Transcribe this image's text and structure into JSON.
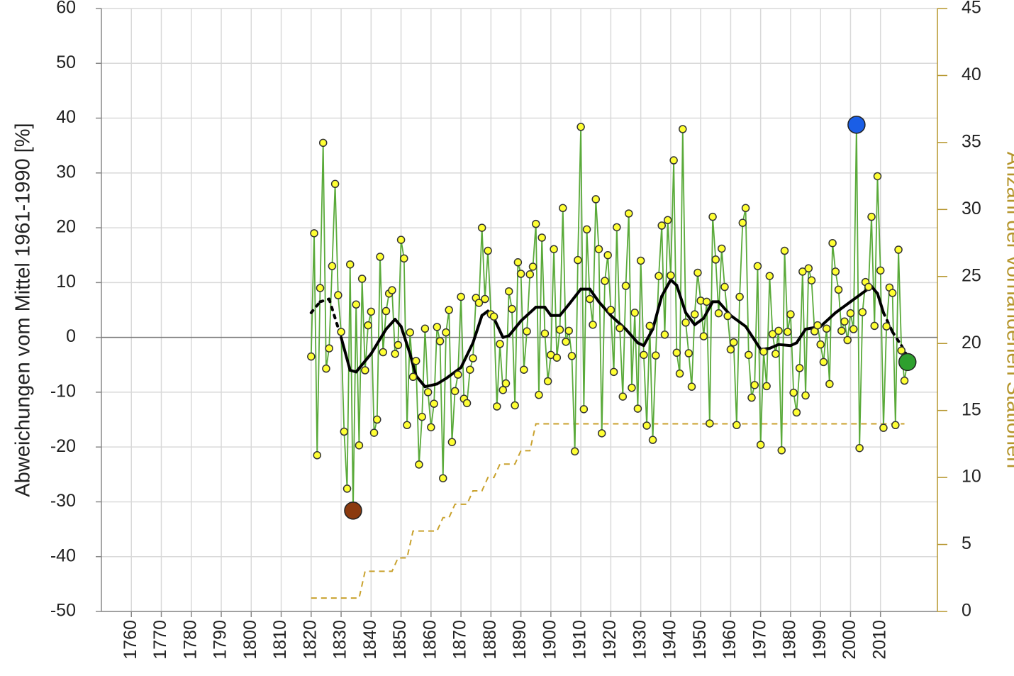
{
  "chart_data": {
    "type": "line",
    "y_label": "Abweichungen vom Mittel 1961-1990 [%]",
    "y2_label": "Anzahl der vorhandenen Stationen",
    "xlim": [
      1750,
      2029
    ],
    "xticks": [
      1760,
      1770,
      1780,
      1790,
      1800,
      1810,
      1820,
      1830,
      1840,
      1850,
      1860,
      1870,
      1880,
      1890,
      1900,
      1910,
      1920,
      1930,
      1940,
      1950,
      1960,
      1970,
      1980,
      1990,
      2000,
      2010
    ],
    "ylim": [
      -50,
      60
    ],
    "yticks": [
      -50,
      -40,
      -30,
      -20,
      -10,
      0,
      10,
      20,
      30,
      40,
      50,
      60
    ],
    "y2lim": [
      0,
      45
    ],
    "y2ticks": [
      0,
      5,
      10,
      15,
      20,
      25,
      30,
      35,
      40,
      45
    ],
    "y2_color": "#b5952c",
    "grid": true,
    "x": [
      1820,
      1821,
      1822,
      1823,
      1824,
      1825,
      1826,
      1827,
      1828,
      1829,
      1830,
      1831,
      1832,
      1833,
      1834,
      1835,
      1836,
      1837,
      1838,
      1839,
      1840,
      1841,
      1842,
      1843,
      1844,
      1845,
      1846,
      1847,
      1848,
      1849,
      1850,
      1851,
      1852,
      1853,
      1854,
      1855,
      1856,
      1857,
      1858,
      1859,
      1860,
      1861,
      1862,
      1863,
      1864,
      1865,
      1866,
      1867,
      1868,
      1869,
      1870,
      1871,
      1872,
      1873,
      1874,
      1875,
      1876,
      1877,
      1878,
      1879,
      1880,
      1881,
      1882,
      1883,
      1884,
      1885,
      1886,
      1887,
      1888,
      1889,
      1890,
      1891,
      1892,
      1893,
      1894,
      1895,
      1896,
      1897,
      1898,
      1899,
      1900,
      1901,
      1902,
      1903,
      1904,
      1905,
      1906,
      1907,
      1908,
      1909,
      1910,
      1911,
      1912,
      1913,
      1914,
      1915,
      1916,
      1917,
      1918,
      1919,
      1920,
      1921,
      1922,
      1923,
      1924,
      1925,
      1926,
      1927,
      1928,
      1929,
      1930,
      1931,
      1932,
      1933,
      1934,
      1935,
      1936,
      1937,
      1938,
      1939,
      1940,
      1941,
      1942,
      1943,
      1944,
      1945,
      1946,
      1947,
      1948,
      1949,
      1950,
      1951,
      1952,
      1953,
      1954,
      1955,
      1956,
      1957,
      1958,
      1959,
      1960,
      1961,
      1962,
      1963,
      1964,
      1965,
      1966,
      1967,
      1968,
      1969,
      1970,
      1971,
      1972,
      1973,
      1974,
      1975,
      1976,
      1977,
      1978,
      1979,
      1980,
      1981,
      1982,
      1983,
      1984,
      1985,
      1986,
      1987,
      1988,
      1989,
      1990,
      1991,
      1992,
      1993,
      1994,
      1995,
      1996,
      1997,
      1998,
      1999,
      2000,
      2001,
      2002,
      2003,
      2004,
      2005,
      2006,
      2007,
      2008,
      2009,
      2010,
      2011,
      2012,
      2013,
      2014,
      2015,
      2016,
      2017,
      2018,
      2019
    ],
    "values": [
      -3.5,
      19,
      -21.5,
      9,
      35.5,
      -5.7,
      -2,
      13,
      28,
      7.7,
      1,
      -17.2,
      -27.6,
      13.3,
      -31.6,
      6,
      -19.7,
      10.7,
      -6,
      2.2,
      4.7,
      -17.4,
      -15,
      14.7,
      -2.7,
      4.8,
      8,
      8.6,
      -3,
      -1.4,
      17.8,
      14.4,
      -16,
      0.9,
      -7.2,
      -4.3,
      -23.2,
      -14.5,
      1.6,
      -10,
      -16.4,
      -12.1,
      1.9,
      -0.7,
      -25.7,
      0.9,
      5,
      -19.1,
      -9.8,
      -6.8,
      7.4,
      -11.2,
      -12,
      -5.9,
      -3.8,
      7.2,
      6.3,
      20,
      7,
      15.8,
      4.2,
      3.8,
      -12.6,
      -1.2,
      -9.6,
      -8.4,
      8.4,
      5.2,
      -12.4,
      13.7,
      11.6,
      -5.9,
      1.1,
      11.5,
      12.9,
      20.7,
      -10.5,
      18.2,
      0.7,
      -8,
      -3.2,
      16.1,
      -3.7,
      1.4,
      23.6,
      -0.8,
      1.2,
      -3.4,
      -20.8,
      14.1,
      38.4,
      -13.1,
      19.7,
      7,
      2.3,
      25.2,
      16.1,
      -17.5,
      10.3,
      15,
      5,
      -6.3,
      20.1,
      1.7,
      -10.8,
      9.4,
      22.6,
      -9.2,
      4.5,
      -13,
      14,
      -3.2,
      -16.1,
      2.1,
      -18.7,
      -3.3,
      11.2,
      20.4,
      0.5,
      21.4,
      11.3,
      32.3,
      -2.8,
      -6.6,
      38,
      2.7,
      -2.9,
      -9,
      4.2,
      11.8,
      6.7,
      0.2,
      6.5,
      -15.7,
      22,
      14.2,
      4.4,
      16.2,
      9.2,
      3.9,
      -2.2,
      -0.9,
      -16,
      7.4,
      20.9,
      23.6,
      -3.2,
      -11,
      -8.7,
      13,
      -19.6,
      -2.6,
      -8.9,
      11.2,
      0.6,
      -3,
      1.2,
      -20.6,
      15.8,
      1,
      4.2,
      -10.1,
      -13.7,
      -5.6,
      12,
      -10.6,
      12.6,
      10.4,
      1.1,
      2.2,
      -1.3,
      -4.5,
      1.6,
      -8.5,
      17.2,
      12,
      8.7,
      1.2,
      2.9,
      -0.5,
      4.4,
      1.5,
      38.8,
      -20.2,
      4.6,
      10.1,
      9.2,
      22,
      2.1,
      29.4,
      12.2,
      -16.5,
      2,
      9.1,
      8.1,
      -16,
      16,
      -2.4,
      -7.9,
      -4.5
    ],
    "color": "#5aaa3a",
    "marker_color": "#ffff33",
    "highlight_colors": {
      "min": "#8b3a0f",
      "max": "#1a5ee6",
      "last": "#2ea02e"
    },
    "trend": {
      "color": "#000000",
      "solid_range": [
        1830,
        2011
      ],
      "x": [
        1820,
        1823,
        1826,
        1830,
        1833,
        1835,
        1840,
        1845,
        1848,
        1850,
        1853,
        1855,
        1858,
        1862,
        1865,
        1870,
        1874,
        1877,
        1879,
        1881,
        1884,
        1886,
        1890,
        1895,
        1898,
        1900,
        1903,
        1906,
        1910,
        1913,
        1916,
        1920,
        1925,
        1929,
        1931,
        1934,
        1937,
        1940,
        1942,
        1945,
        1948,
        1951,
        1954,
        1956,
        1960,
        1965,
        1968,
        1970,
        1973,
        1976,
        1980,
        1982,
        1985,
        1990,
        1995,
        2000,
        2005,
        2007,
        2009,
        2011,
        2014,
        2017,
        2019
      ],
      "values": [
        4.5,
        6.5,
        7,
        0,
        -6,
        -6.3,
        -3,
        1.5,
        3.3,
        2,
        -3,
        -7,
        -9,
        -8.5,
        -7.5,
        -5.5,
        -1,
        4,
        4.8,
        3.5,
        0,
        0.3,
        3,
        5.5,
        5.5,
        4,
        4,
        6,
        8.8,
        8.8,
        6.5,
        4,
        1.5,
        -1,
        -1.5,
        1.5,
        7.5,
        10.5,
        9.5,
        4.5,
        2.3,
        3.5,
        6.5,
        6.5,
        4,
        2,
        -0.5,
        -2.2,
        -2,
        -1.3,
        -1.5,
        -1,
        1.5,
        2,
        4.5,
        6.5,
        8.5,
        9.3,
        8,
        4.5,
        1,
        -1.5,
        -3.5
      ]
    },
    "stations": {
      "axis": "y2",
      "color": "#c9a22e",
      "x": [
        1820,
        1836,
        1838,
        1847,
        1849,
        1852,
        1854,
        1862,
        1864,
        1866,
        1868,
        1872,
        1874,
        1877,
        1879,
        1881,
        1883,
        1888,
        1890,
        1893,
        1895,
        2018
      ],
      "values": [
        1,
        1,
        3,
        3,
        4,
        4,
        6,
        6,
        7,
        7,
        8,
        8,
        9,
        9,
        10,
        10,
        11,
        11,
        12,
        12,
        14,
        14
      ]
    }
  }
}
